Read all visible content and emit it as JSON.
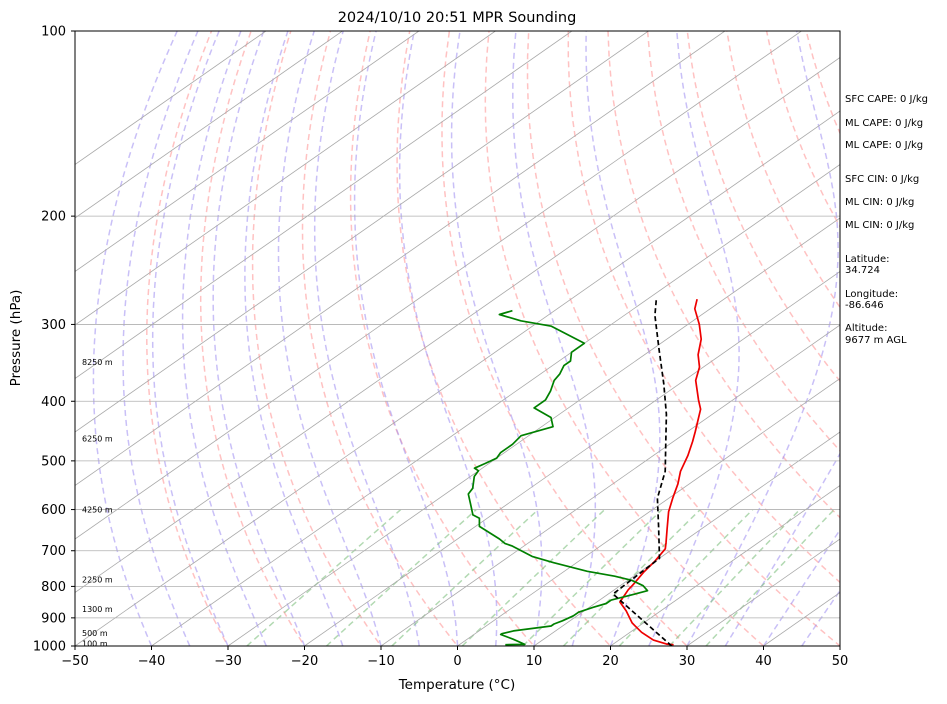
{
  "chart_data": {
    "type": "line",
    "subtype": "skew-t log-p",
    "title": "2024/10/10 20:51 MPR Sounding",
    "xlabel": "Temperature (°C)",
    "ylabel": "Pressure (hPa)",
    "xlim": [
      -50,
      50
    ],
    "ylim": [
      1000,
      100
    ],
    "y_scale": "log",
    "x_ticks": [
      "−50",
      "−40",
      "−30",
      "−20",
      "−10",
      "0",
      "10",
      "20",
      "30",
      "40",
      "50"
    ],
    "y_ticks": [
      "100",
      "200",
      "300",
      "400",
      "500",
      "600",
      "700",
      "800",
      "900",
      "1000"
    ],
    "grid": true,
    "colors": {
      "temperature": "#ee0000",
      "dewpoint": "#008000",
      "parcel": "#000000",
      "dry_adiabats": "#ff9999",
      "moist_adiabats": "#9c8cf0",
      "mixing_ratio": "#7fbf7f",
      "isotherms": "#a9a9a9",
      "grid": "#b0b0b0"
    },
    "series": [
      {
        "name": "Temperature",
        "style": "solid",
        "points": [
          [
            28.0,
            995
          ],
          [
            27.0,
            993
          ],
          [
            24.5,
            978
          ],
          [
            21.5,
            950
          ],
          [
            18.5,
            917
          ],
          [
            15.5,
            877
          ],
          [
            13.0,
            848
          ],
          [
            11.8,
            810
          ],
          [
            11.5,
            795
          ],
          [
            10.5,
            757
          ],
          [
            10.0,
            730
          ],
          [
            9.0,
            695
          ],
          [
            8.0,
            680
          ],
          [
            5.5,
            645
          ],
          [
            2.5,
            605
          ],
          [
            0.5,
            575
          ],
          [
            -1.5,
            545
          ],
          [
            -3.5,
            520
          ],
          [
            -5.5,
            490
          ],
          [
            -7.5,
            465
          ],
          [
            -9.0,
            448
          ],
          [
            -12.5,
            412
          ],
          [
            -14.5,
            398
          ],
          [
            -18.5,
            370
          ],
          [
            -20.5,
            352
          ],
          [
            -23.0,
            336
          ],
          [
            -25.5,
            317
          ],
          [
            -28.5,
            300
          ],
          [
            -32.0,
            283
          ],
          [
            -33.5,
            273
          ]
        ]
      },
      {
        "name": "Dewpoint",
        "style": "solid",
        "points": [
          [
            6.0,
            995
          ],
          [
            8.5,
            994
          ],
          [
            6.0,
            975
          ],
          [
            3.5,
            958
          ],
          [
            3.5,
            955
          ],
          [
            4.5,
            945
          ],
          [
            8.5,
            928
          ],
          [
            8.5,
            921
          ],
          [
            9.0,
            910
          ],
          [
            9.5,
            893
          ],
          [
            9.5,
            881
          ],
          [
            10.5,
            865
          ],
          [
            11.5,
            853
          ],
          [
            11.5,
            842
          ],
          [
            13.0,
            828
          ],
          [
            14.5,
            813
          ],
          [
            13.0,
            798
          ],
          [
            10.5,
            782
          ],
          [
            7.5,
            770
          ],
          [
            3.0,
            756
          ],
          [
            -3.0,
            732
          ],
          [
            -7.0,
            715
          ],
          [
            -11.5,
            688
          ],
          [
            -13.0,
            681
          ],
          [
            -14.5,
            670
          ],
          [
            -19.5,
            639
          ],
          [
            -21.0,
            620
          ],
          [
            -22.5,
            612
          ],
          [
            -25.0,
            586
          ],
          [
            -27.0,
            566
          ],
          [
            -27.5,
            554
          ],
          [
            -29.5,
            530
          ],
          [
            -30.0,
            519
          ],
          [
            -31.0,
            514
          ],
          [
            -30.5,
            505
          ],
          [
            -30.0,
            495
          ],
          [
            -30.5,
            485
          ],
          [
            -30.5,
            470
          ],
          [
            -31.0,
            455
          ],
          [
            -28.5,
            440
          ],
          [
            -30.5,
            425
          ],
          [
            -34.5,
            410
          ],
          [
            -34.5,
            398
          ],
          [
            -35.5,
            385
          ],
          [
            -37.0,
            370
          ],
          [
            -37.5,
            361
          ],
          [
            -38.5,
            350
          ],
          [
            -38.5,
            344
          ],
          [
            -40.0,
            333
          ],
          [
            -40.0,
            322
          ],
          [
            -47.5,
            302
          ],
          [
            -52.5,
            296
          ],
          [
            -56.5,
            289
          ],
          [
            -55.5,
            285
          ]
        ]
      },
      {
        "name": "Parcel Profile",
        "style": "dashed",
        "points": [
          [
            28.0,
            1000
          ],
          [
            10.6,
            823
          ],
          [
            10.0,
            720
          ],
          [
            4.0,
            640
          ],
          [
            -1.5,
            575
          ],
          [
            -5.5,
            520
          ],
          [
            -11.0,
            465
          ],
          [
            -16.0,
            420
          ],
          [
            -22.0,
            375
          ],
          [
            -29.0,
            330
          ],
          [
            -36.0,
            290
          ],
          [
            -39.0,
            272
          ]
        ]
      }
    ],
    "altitude_labels": [
      {
        "text": "100 m",
        "pressure": 990
      },
      {
        "text": "500 m",
        "pressure": 952
      },
      {
        "text": "1300 m",
        "pressure": 870
      },
      {
        "text": "2250 m",
        "pressure": 780
      },
      {
        "text": "4250 m",
        "pressure": 600
      },
      {
        "text": "6250 m",
        "pressure": 460
      },
      {
        "text": "8250 m",
        "pressure": 345
      }
    ],
    "annotations": [
      "SFC CAPE: 0 J/kg",
      "ML CAPE: 0 J/kg",
      "ML CAPE: 0 J/kg",
      "SFC CIN: 0 J/kg",
      "ML CIN: 0 J/kg",
      "ML CIN: 0 J/kg",
      "Latitude:",
      "34.724",
      "Longitude:",
      "-86.646",
      "Altitude:",
      "9677 m AGL"
    ]
  }
}
